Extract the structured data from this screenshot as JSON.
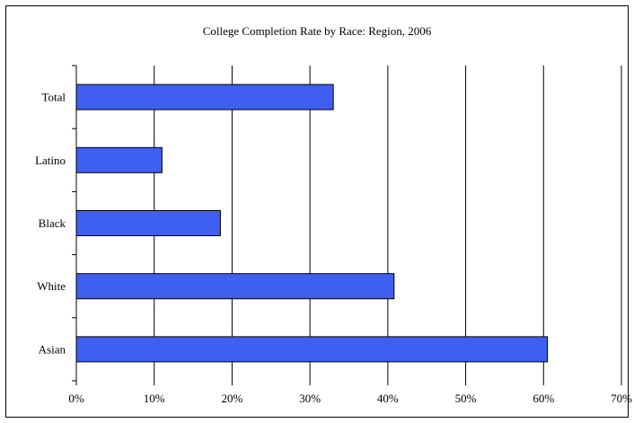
{
  "chart_data": {
    "type": "bar",
    "orientation": "horizontal",
    "title": "College Completion Rate by Race: Region, 2006",
    "xlabel": "",
    "ylabel": "",
    "categories": [
      "Total",
      "Latino",
      "Black",
      "White",
      "Asian"
    ],
    "values": [
      33,
      11,
      18.5,
      40.8,
      60.5
    ],
    "xlim": [
      0,
      70
    ],
    "xticks": [
      "0%",
      "10%",
      "20%",
      "30%",
      "40%",
      "50%",
      "60%",
      "70%"
    ],
    "grid": "vertical",
    "legend": "none",
    "colors": {
      "bar_fill": "#3f5ff0",
      "bar_stroke": "#000000",
      "grid": "#000000"
    }
  }
}
